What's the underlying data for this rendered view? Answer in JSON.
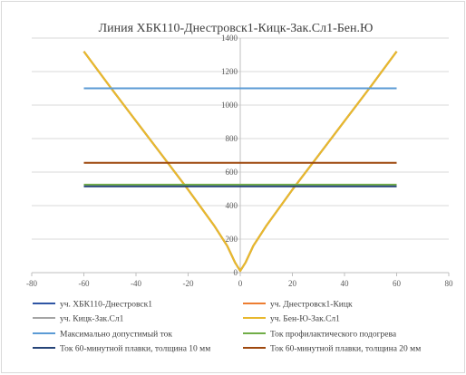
{
  "chart_data": {
    "type": "line",
    "title": "Линия ХБК110-Днестровск1-Кицк-Зак.Сл1-Бен.Ю",
    "xlabel": "",
    "ylabel": "",
    "xlim": [
      -80,
      80
    ],
    "ylim": [
      0,
      1400
    ],
    "x_ticks": [
      "-80",
      "-60",
      "-40",
      "-20",
      "0",
      "20",
      "40",
      "60",
      "80"
    ],
    "y_ticks": [
      "0",
      "200",
      "400",
      "600",
      "800",
      "1000",
      "1200",
      "1400"
    ],
    "grid": "horizontal",
    "legend_position": "bottom",
    "series": [
      {
        "name": "уч. ХБК110-Днестровск1",
        "color": "#2f55a4",
        "x": [
          -60,
          -50,
          -40,
          -30,
          -20,
          -10,
          -5,
          -2,
          0,
          2,
          5,
          10,
          20,
          30,
          40,
          50,
          60
        ],
        "values": [
          1320,
          1110,
          905,
          700,
          495,
          280,
          160,
          60,
          10,
          60,
          160,
          280,
          495,
          700,
          905,
          1110,
          1320
        ]
      },
      {
        "name": "уч. Днестровск1-Кицк",
        "color": "#ed7d31",
        "x": [
          -60,
          -50,
          -40,
          -30,
          -20,
          -10,
          -5,
          -2,
          0,
          2,
          5,
          10,
          20,
          30,
          40,
          50,
          60
        ],
        "values": [
          1320,
          1110,
          905,
          700,
          495,
          280,
          160,
          60,
          10,
          60,
          160,
          280,
          495,
          700,
          905,
          1110,
          1320
        ]
      },
      {
        "name": "уч. Кицк-Зак.Сл1",
        "color": "#a5a5a5",
        "x": [
          -60,
          -50,
          -40,
          -30,
          -20,
          -10,
          -5,
          -2,
          0,
          2,
          5,
          10,
          20,
          30,
          40,
          50,
          60
        ],
        "values": [
          1320,
          1110,
          905,
          700,
          495,
          280,
          160,
          60,
          10,
          60,
          160,
          280,
          495,
          700,
          905,
          1110,
          1320
        ]
      },
      {
        "name": "уч. Бен-Ю-Зак.Сл1",
        "color": "#e8b82e",
        "x": [
          -60,
          -50,
          -40,
          -30,
          -20,
          -10,
          -5,
          -2,
          0,
          2,
          5,
          10,
          20,
          30,
          40,
          50,
          60
        ],
        "values": [
          1320,
          1110,
          905,
          700,
          495,
          280,
          160,
          60,
          10,
          60,
          160,
          280,
          495,
          700,
          905,
          1110,
          1320
        ]
      },
      {
        "name": "Максимально допустимый ток",
        "color": "#5b9bd5",
        "x": [
          -60,
          60
        ],
        "values": [
          1100,
          1100
        ]
      },
      {
        "name": "Ток профилактического подогрева",
        "color": "#70ad47",
        "x": [
          -60,
          60
        ],
        "values": [
          525,
          525
        ]
      },
      {
        "name": "Ток 60-минутной плавки, толщина 10 мм",
        "color": "#264478",
        "x": [
          -60,
          60
        ],
        "values": [
          515,
          515
        ]
      },
      {
        "name": "Ток 60-минутной плавки, толщина 20 мм",
        "color": "#9e480e",
        "x": [
          -60,
          60
        ],
        "values": [
          655,
          655
        ]
      }
    ]
  }
}
